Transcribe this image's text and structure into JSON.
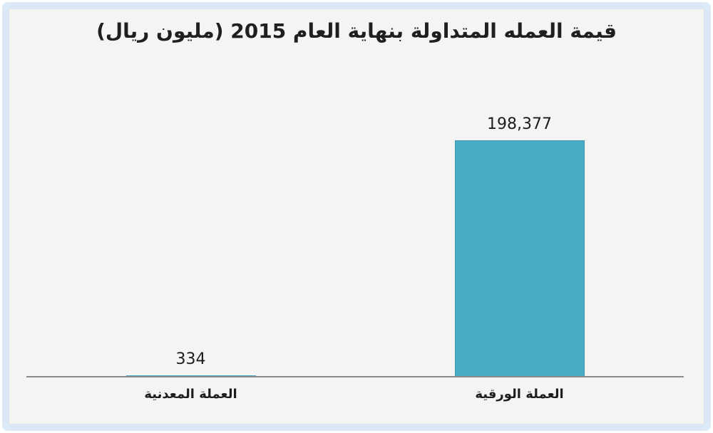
{
  "chart_data": {
    "type": "bar",
    "title": "قيمة العمله المتداولة بنهاية العام 2015 (مليون ريال)",
    "categories": [
      "العملة المعدنية",
      "العملة الورقية"
    ],
    "values": [
      334,
      198377
    ],
    "value_labels": [
      "334",
      "198,377"
    ],
    "xlabel": "",
    "ylabel": "",
    "ylim": [
      0,
      198377
    ],
    "grid": false,
    "legend": false,
    "text_direction": "rtl",
    "bar_color": "#4aabc6"
  },
  "colors": {
    "frame_border": "#dbe9f6",
    "plot_background": "#f4f4f3",
    "bar_fill": "#4aabc6",
    "bar_border": "#3f9cb6",
    "axis_line": "#8c8c8c",
    "text": "#1f1f1f"
  }
}
